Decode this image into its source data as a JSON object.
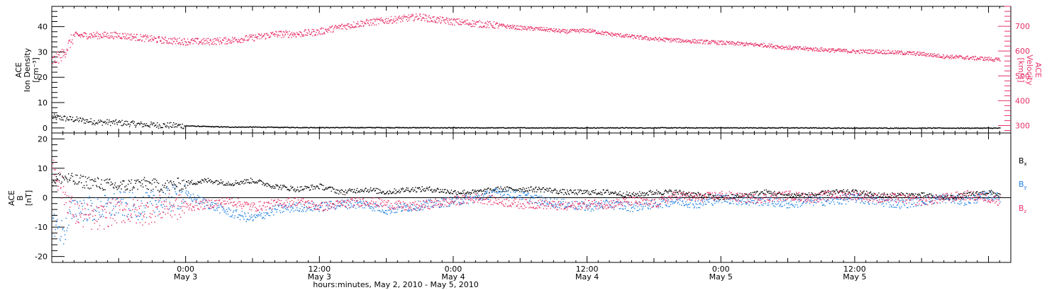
{
  "chart_data": [
    {
      "type": "scatter",
      "panel": "top",
      "ylabel_left": [
        "ACE",
        "Ion Density",
        "[cm⁻³]"
      ],
      "ylabel_right": [
        "ACE",
        "Velocity",
        "[km/s]"
      ],
      "ylim_left": [
        -2,
        48
      ],
      "ylim_right": [
        270,
        780
      ],
      "yticks_left": [
        0,
        10,
        20,
        30,
        40
      ],
      "yticks_right": [
        300,
        400,
        500,
        600,
        700
      ],
      "grid": false,
      "colors": {
        "density": "#000000",
        "velocity": "#e8336a"
      },
      "series": [
        {
          "name": "Density",
          "axis": "left",
          "x_hours": [
            0,
            2,
            4,
            6,
            8,
            10,
            12,
            14,
            16,
            18,
            20,
            24,
            30,
            36,
            42,
            48,
            54,
            60,
            66,
            72,
            78,
            84,
            85
          ],
          "values": [
            4.5,
            3.5,
            2.5,
            2.2,
            1.5,
            1.2,
            1.0,
            0.7,
            0.5,
            0.5,
            0.4,
            0.3,
            0.3,
            0.2,
            0.2,
            0.2,
            0.2,
            0.2,
            0.2,
            0.1,
            0.1,
            0.1,
            0.1
          ]
        },
        {
          "name": "Velocity",
          "axis": "right",
          "x_hours": [
            0,
            1,
            2,
            4,
            6,
            8,
            10,
            12,
            14,
            16,
            18,
            20,
            22,
            24,
            26,
            28,
            30,
            32,
            33,
            34,
            36,
            38,
            40,
            42,
            44,
            46,
            48,
            50,
            52,
            54,
            56,
            58,
            60,
            62,
            64,
            66,
            68,
            70,
            72,
            74,
            76,
            78,
            80,
            82,
            84,
            85
          ],
          "values": [
            560,
            590,
            665,
            665,
            665,
            655,
            645,
            640,
            640,
            645,
            655,
            670,
            670,
            680,
            700,
            715,
            725,
            735,
            740,
            730,
            720,
            712,
            705,
            695,
            690,
            680,
            685,
            670,
            660,
            650,
            645,
            640,
            635,
            630,
            625,
            615,
            610,
            605,
            600,
            600,
            595,
            590,
            580,
            575,
            570,
            565
          ]
        }
      ]
    },
    {
      "type": "scatter",
      "panel": "bottom",
      "ylabel_left": [
        "ACE",
        "B",
        "[nT]"
      ],
      "ylim": [
        -22,
        22
      ],
      "yticks": [
        -20,
        -10,
        0,
        10,
        20
      ],
      "zero_line": true,
      "grid": false,
      "colors": {
        "Bx": "#000000",
        "By": "#1f7fe0",
        "Bz": "#e8336a"
      },
      "legend": {
        "placement": "right",
        "entries": [
          "B",
          "B",
          "B"
        ],
        "subscripts": [
          "x",
          "y",
          "z"
        ]
      },
      "series": [
        {
          "name": "Bx",
          "x_hours": [
            0,
            1,
            2,
            4,
            6,
            8,
            10,
            12,
            14,
            16,
            18,
            20,
            22,
            24,
            26,
            28,
            30,
            32,
            34,
            36,
            38,
            40,
            42,
            44,
            46,
            48,
            50,
            52,
            54,
            56,
            58,
            60,
            62,
            64,
            66,
            68,
            70,
            72,
            74,
            76,
            78,
            80,
            82,
            84,
            85
          ],
          "values": [
            6,
            7,
            6,
            5,
            4,
            5,
            4,
            5,
            6,
            5,
            6,
            4,
            3,
            4,
            2,
            3,
            2,
            3,
            3,
            2,
            2,
            3,
            3,
            3,
            2,
            2,
            2,
            1,
            2,
            2,
            1,
            0,
            1,
            2,
            1,
            1,
            2,
            2,
            1,
            1,
            1,
            0,
            1,
            2,
            1
          ]
        },
        {
          "name": "By",
          "x_hours": [
            0,
            1,
            2,
            4,
            6,
            8,
            10,
            12,
            14,
            16,
            18,
            20,
            22,
            24,
            26,
            28,
            30,
            32,
            34,
            36,
            38,
            40,
            42,
            44,
            46,
            48,
            50,
            52,
            54,
            56,
            58,
            60,
            62,
            64,
            66,
            68,
            70,
            72,
            74,
            76,
            78,
            80,
            82,
            84,
            85
          ],
          "values": [
            -8,
            -12,
            -3,
            -4,
            -2,
            -3,
            -1,
            1,
            -2,
            -5,
            -7,
            -4,
            -3,
            -3,
            -2,
            -2,
            -4,
            -3,
            -2,
            -1,
            0,
            2,
            1,
            -1,
            -2,
            -3,
            -2,
            -3,
            -2,
            -1,
            -2,
            0,
            -1,
            -1,
            -2,
            -1,
            -1,
            0,
            -1,
            -2,
            -1,
            0,
            -1,
            1,
            0
          ]
        },
        {
          "name": "Bz",
          "x_hours": [
            0,
            1,
            2,
            4,
            6,
            8,
            10,
            12,
            14,
            16,
            18,
            20,
            22,
            24,
            26,
            28,
            30,
            32,
            34,
            36,
            38,
            40,
            42,
            44,
            46,
            48,
            50,
            52,
            54,
            56,
            58,
            60,
            62,
            64,
            66,
            68,
            70,
            72,
            74,
            76,
            78,
            80,
            82,
            84,
            85
          ],
          "values": [
            12,
            2,
            -5,
            -7,
            -4,
            -5,
            -3,
            -3,
            -2,
            -1,
            -3,
            -2,
            -1,
            -3,
            -2,
            -1,
            -2,
            -3,
            -2,
            -1,
            0,
            -1,
            -2,
            -2,
            -3,
            -2,
            -2,
            -1,
            -2,
            1,
            0,
            1,
            0,
            0,
            1,
            0,
            1,
            1,
            0,
            0,
            -1,
            0,
            1,
            0,
            -1
          ]
        }
      ]
    }
  ],
  "x_axis": {
    "xlim_hours": [
      0,
      86
    ],
    "major_ticks": [
      {
        "hours": 12,
        "time": "0:00",
        "date": "May 3"
      },
      {
        "hours": 24,
        "time": "12:00",
        "date": "May 3"
      },
      {
        "hours": 36,
        "time": "0:00",
        "date": "May 4"
      },
      {
        "hours": 48,
        "time": "12:00",
        "date": "May 4"
      },
      {
        "hours": 60,
        "time": "0:00",
        "date": "May 5"
      },
      {
        "hours": 72,
        "time": "12:00",
        "date": "May 5"
      }
    ],
    "caption": "hours:minutes,  May  2, 2010  -  May  5, 2010"
  }
}
